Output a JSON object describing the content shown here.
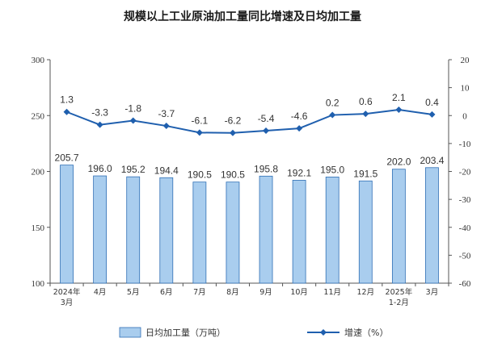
{
  "colors": {
    "bar_fill": "#a9cdee",
    "bar_stroke": "#2f6fb5",
    "line": "#1f5fae",
    "axis": "#555555",
    "text": "#333333"
  },
  "chart_data": {
    "type": "bar",
    "title": "规模以上工业原油加工量同比增速及日均加工量",
    "categories": [
      [
        "2024年",
        "3月"
      ],
      [
        "4月"
      ],
      [
        "5月"
      ],
      [
        "6月"
      ],
      [
        "7月"
      ],
      [
        "8月"
      ],
      [
        "9月"
      ],
      [
        "10月"
      ],
      [
        "11月"
      ],
      [
        "12月"
      ],
      [
        "2025年",
        "1-2月"
      ],
      [
        "3月"
      ]
    ],
    "series": [
      {
        "name": "日均加工量（万吨）",
        "type": "bar",
        "axis": "left",
        "values": [
          205.7,
          196.0,
          195.2,
          194.4,
          190.5,
          190.5,
          195.8,
          192.1,
          195.0,
          191.5,
          202.0,
          203.4
        ],
        "labels": [
          "205.7",
          "196.0",
          "195.2",
          "194.4",
          "190.5",
          "190.5",
          "195.8",
          "192.1",
          "195.0",
          "191.5",
          "202.0",
          "203.4"
        ]
      },
      {
        "name": "增速（%）",
        "type": "line",
        "axis": "right",
        "values": [
          1.3,
          -3.3,
          -1.8,
          -3.7,
          -6.1,
          -6.2,
          -5.4,
          -4.6,
          0.2,
          0.6,
          2.1,
          0.4
        ],
        "labels": [
          "1.3",
          "-3.3",
          "-1.8",
          "-3.7",
          "-6.1",
          "-6.2",
          "-5.4",
          "-4.6",
          "0.2",
          "0.6",
          "2.1",
          "0.4"
        ]
      }
    ],
    "y_left": {
      "min": 100,
      "max": 300,
      "ticks": [
        "100",
        "150",
        "200",
        "250",
        "300"
      ]
    },
    "y_right": {
      "min": -60,
      "max": 20,
      "ticks": [
        "-60",
        "-50",
        "-40",
        "-30",
        "-20",
        "-10",
        "0",
        "10",
        "20"
      ]
    },
    "grid": false,
    "legend_position": "bottom"
  }
}
